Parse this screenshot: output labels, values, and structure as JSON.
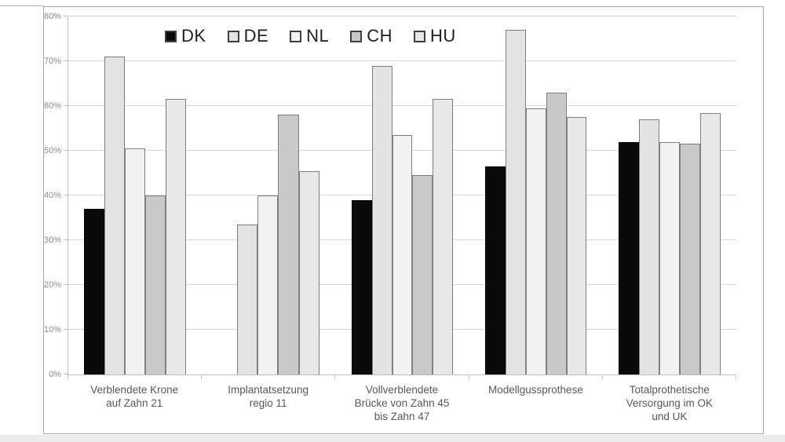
{
  "chart_data": {
    "type": "bar",
    "title": "",
    "xlabel": "",
    "ylabel": "",
    "ylim": [
      0,
      80
    ],
    "grid": true,
    "legend_position": "top",
    "yticks": [
      {
        "label": "0%",
        "value": 0
      },
      {
        "label": "10%",
        "value": 10
      },
      {
        "label": "20%",
        "value": 20
      },
      {
        "label": "30%",
        "value": 30
      },
      {
        "label": "40%",
        "value": 40
      },
      {
        "label": "50%",
        "value": 50
      },
      {
        "label": "60%",
        "value": 60
      },
      {
        "label": "70%",
        "value": 70
      },
      {
        "label": "80%",
        "value": 80
      }
    ],
    "categories": [
      "Verblendete Krone\nauf Zahn 21",
      "Implantatsetzung\nregio 11",
      "Vollverblendete\nBrücke von Zahn 45\nbis Zahn 47",
      "Modellgussprothese",
      "Totalprothetische\nVersorgung im OK\nund UK"
    ],
    "series": [
      {
        "name": "DK",
        "color": "#0a0a0a",
        "values": [
          37,
          0,
          39,
          46.5,
          52
        ]
      },
      {
        "name": "DE",
        "color": "#e3e3e3",
        "values": [
          71,
          33.5,
          69,
          77,
          57
        ]
      },
      {
        "name": "NL",
        "color": "#f2f2f2",
        "values": [
          50.5,
          40,
          53.5,
          59.5,
          52
        ]
      },
      {
        "name": "CH",
        "color": "#c9c9c9",
        "values": [
          40,
          58,
          44.5,
          63,
          51.5
        ]
      },
      {
        "name": "HU",
        "color": "#e8e8e8",
        "values": [
          61.5,
          45.5,
          61.5,
          57.5,
          58.5
        ]
      }
    ]
  }
}
